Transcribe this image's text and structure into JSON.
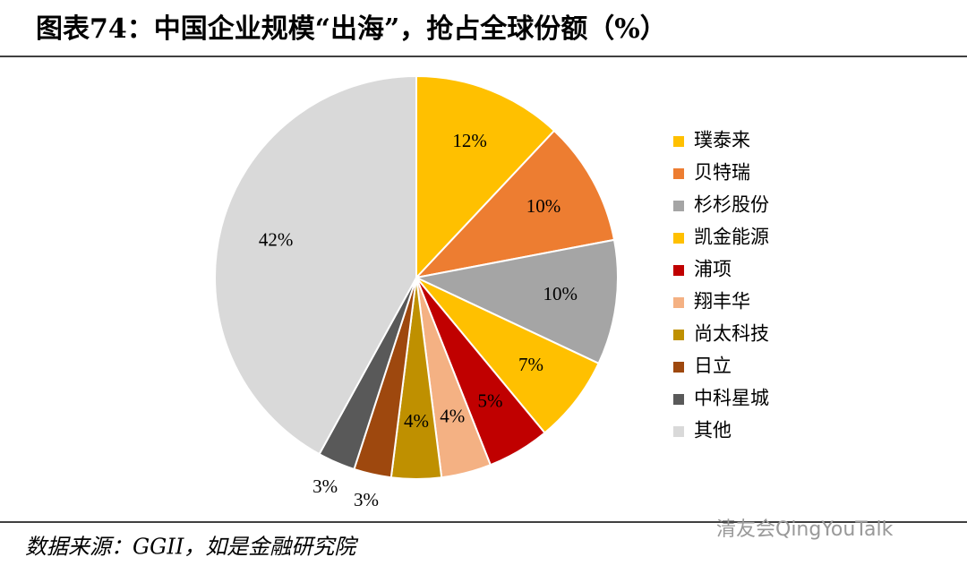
{
  "chart_data": {
    "type": "pie",
    "title": "图表74：中国企业规模“出海”，抢占全球份额（%）",
    "categories": [
      "璞泰来",
      "贝特瑞",
      "杉杉股份",
      "凯金能源",
      "浦项",
      "翔丰华",
      "尚太科技",
      "日立",
      "中科星城",
      "其他"
    ],
    "values": [
      12,
      10,
      10,
      7,
      5,
      4,
      4,
      3,
      3,
      42
    ],
    "value_labels": [
      "12%",
      "10%",
      "10%",
      "7%",
      "5%",
      "4%",
      "4%",
      "3%",
      "3%",
      "42%"
    ],
    "colors": [
      "#FFC000",
      "#ED7D31",
      "#A5A5A5",
      "#FFC000",
      "#C00000",
      "#F4B183",
      "#BF9000",
      "#9E480E",
      "#595959",
      "#D9D9D9"
    ],
    "legend": "right",
    "source": "数据来源：GGII，如是金融研究院",
    "watermark": "清友会QingYouTalk"
  }
}
